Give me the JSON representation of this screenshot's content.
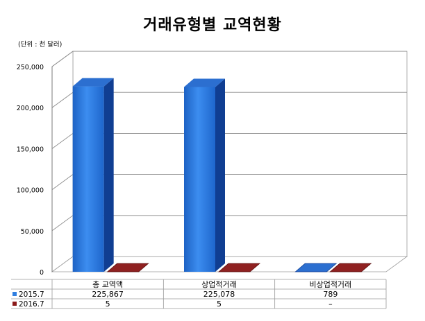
{
  "chart_data": {
    "type": "bar",
    "title": "거래유형별 교역현황",
    "unit_label": "(단위 : 천 달러)",
    "categories": [
      "총 교역액",
      "상업적거래",
      "비상업적거래"
    ],
    "series": [
      {
        "name": "2015.7",
        "values": [
          225867,
          225078,
          789
        ],
        "labels": [
          "225,867",
          "225,078",
          "789"
        ],
        "color": "#2f7ee0"
      },
      {
        "name": "2016.7",
        "values": [
          5,
          5,
          0
        ],
        "labels": [
          "5",
          "5",
          "–"
        ],
        "color": "#8b1a1a"
      }
    ],
    "yticks": [
      "0",
      "50,000",
      "100,000",
      "150,000",
      "200,000",
      "250,000"
    ],
    "ylim": [
      0,
      250000
    ],
    "grid": true,
    "legend": "table-below",
    "three_d": true
  }
}
